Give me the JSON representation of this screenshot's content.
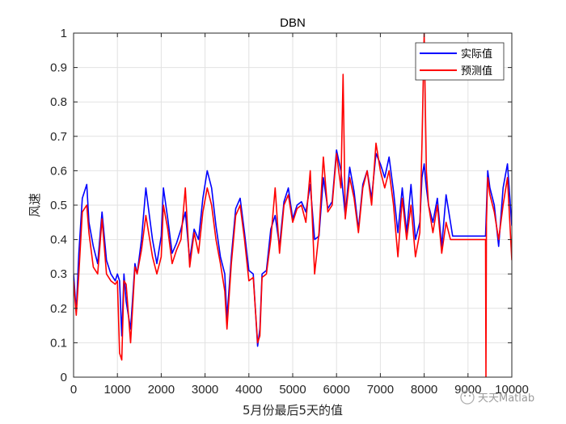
{
  "chart_data": {
    "type": "line",
    "title": "DBN",
    "xlabel": "5月份最后5天的值",
    "ylabel": "风速",
    "xlim": [
      0,
      10000
    ],
    "ylim": [
      0,
      1
    ],
    "x_ticks": [
      0,
      1000,
      2000,
      3000,
      4000,
      5000,
      6000,
      7000,
      8000,
      9000,
      10000
    ],
    "y_ticks": [
      0,
      0.1,
      0.2,
      0.3,
      0.4,
      0.5,
      0.6,
      0.7,
      0.8,
      0.9,
      1
    ],
    "grid": true,
    "legend_position": "top-right",
    "series": [
      {
        "name": "实际值",
        "color": "#0000ff",
        "x": [
          0,
          60,
          120,
          200,
          300,
          350,
          450,
          550,
          650,
          750,
          850,
          950,
          1000,
          1050,
          1100,
          1150,
          1200,
          1300,
          1400,
          1450,
          1550,
          1650,
          1700,
          1800,
          1900,
          2000,
          2050,
          2150,
          2250,
          2350,
          2450,
          2550,
          2650,
          2750,
          2850,
          2950,
          3050,
          3150,
          3250,
          3350,
          3450,
          3500,
          3600,
          3700,
          3800,
          3900,
          4000,
          4100,
          4200,
          4250,
          4300,
          4400,
          4500,
          4600,
          4700,
          4800,
          4900,
          5000,
          5100,
          5200,
          5300,
          5400,
          5500,
          5600,
          5700,
          5800,
          5900,
          6000,
          6100,
          6200,
          6300,
          6400,
          6500,
          6600,
          6700,
          6800,
          6900,
          7000,
          7100,
          7200,
          7300,
          7400,
          7500,
          7600,
          7700,
          7800,
          7900,
          7950,
          8000,
          8050,
          8100,
          8200,
          8300,
          8400,
          8500,
          8600,
          8650,
          8700,
          9000,
          9300,
          9400,
          9450,
          9500,
          9600,
          9700,
          9800,
          9900,
          10000
        ],
        "values": [
          0.3,
          0.19,
          0.36,
          0.52,
          0.56,
          0.45,
          0.38,
          0.33,
          0.48,
          0.34,
          0.3,
          0.28,
          0.3,
          0.28,
          0.12,
          0.3,
          0.22,
          0.14,
          0.33,
          0.3,
          0.4,
          0.55,
          0.5,
          0.4,
          0.33,
          0.41,
          0.55,
          0.46,
          0.36,
          0.39,
          0.43,
          0.48,
          0.34,
          0.43,
          0.4,
          0.52,
          0.6,
          0.55,
          0.44,
          0.35,
          0.3,
          0.17,
          0.35,
          0.49,
          0.52,
          0.42,
          0.31,
          0.3,
          0.09,
          0.14,
          0.3,
          0.31,
          0.43,
          0.47,
          0.38,
          0.51,
          0.55,
          0.46,
          0.5,
          0.51,
          0.48,
          0.56,
          0.4,
          0.41,
          0.58,
          0.49,
          0.51,
          0.66,
          0.6,
          0.47,
          0.61,
          0.54,
          0.43,
          0.56,
          0.6,
          0.52,
          0.65,
          0.62,
          0.58,
          0.64,
          0.54,
          0.42,
          0.55,
          0.42,
          0.56,
          0.4,
          0.45,
          0.58,
          0.62,
          0.55,
          0.5,
          0.45,
          0.52,
          0.38,
          0.53,
          0.45,
          0.41,
          0.41,
          0.41,
          0.41,
          0.41,
          0.6,
          0.55,
          0.5,
          0.38,
          0.55,
          0.62,
          0.44
        ]
      },
      {
        "name": "预测值",
        "color": "#ff0000",
        "x": [
          0,
          60,
          120,
          200,
          300,
          350,
          450,
          550,
          650,
          750,
          850,
          950,
          1000,
          1050,
          1100,
          1150,
          1200,
          1300,
          1400,
          1450,
          1550,
          1650,
          1700,
          1800,
          1900,
          2000,
          2050,
          2150,
          2250,
          2350,
          2450,
          2550,
          2650,
          2750,
          2850,
          2950,
          3050,
          3150,
          3250,
          3350,
          3450,
          3500,
          3600,
          3700,
          3800,
          3900,
          4000,
          4100,
          4200,
          4250,
          4300,
          4400,
          4500,
          4600,
          4700,
          4800,
          4900,
          5000,
          5100,
          5200,
          5300,
          5400,
          5500,
          5600,
          5700,
          5800,
          5900,
          6000,
          6100,
          6150,
          6200,
          6300,
          6400,
          6500,
          6600,
          6700,
          6800,
          6900,
          7000,
          7100,
          7200,
          7300,
          7400,
          7500,
          7600,
          7700,
          7800,
          7900,
          7950,
          8000,
          8050,
          8100,
          8200,
          8300,
          8400,
          8500,
          8600,
          8650,
          8700,
          9000,
          9300,
          9400,
          9410,
          9420,
          9450,
          9500,
          9600,
          9700,
          9800,
          9900,
          10000
        ],
        "values": [
          0.28,
          0.18,
          0.3,
          0.48,
          0.5,
          0.42,
          0.32,
          0.3,
          0.46,
          0.3,
          0.28,
          0.27,
          0.28,
          0.07,
          0.05,
          0.28,
          0.27,
          0.1,
          0.32,
          0.3,
          0.37,
          0.47,
          0.43,
          0.35,
          0.3,
          0.35,
          0.5,
          0.43,
          0.33,
          0.37,
          0.4,
          0.55,
          0.32,
          0.42,
          0.36,
          0.48,
          0.55,
          0.5,
          0.4,
          0.33,
          0.25,
          0.14,
          0.33,
          0.47,
          0.5,
          0.4,
          0.28,
          0.29,
          0.1,
          0.12,
          0.29,
          0.3,
          0.4,
          0.55,
          0.36,
          0.5,
          0.53,
          0.45,
          0.49,
          0.5,
          0.45,
          0.6,
          0.3,
          0.42,
          0.64,
          0.48,
          0.5,
          0.65,
          0.55,
          0.88,
          0.46,
          0.58,
          0.52,
          0.42,
          0.55,
          0.6,
          0.5,
          0.68,
          0.6,
          0.55,
          0.6,
          0.5,
          0.35,
          0.52,
          0.4,
          0.5,
          0.35,
          0.42,
          0.68,
          1.0,
          0.6,
          0.5,
          0.42,
          0.5,
          0.36,
          0.45,
          0.4,
          0.4,
          0.4,
          0.4,
          0.4,
          0.4,
          0.0,
          0.45,
          0.58,
          0.53,
          0.48,
          0.4,
          0.5,
          0.58,
          0.34
        ]
      }
    ]
  },
  "watermark": {
    "text": "天天Matlab"
  }
}
